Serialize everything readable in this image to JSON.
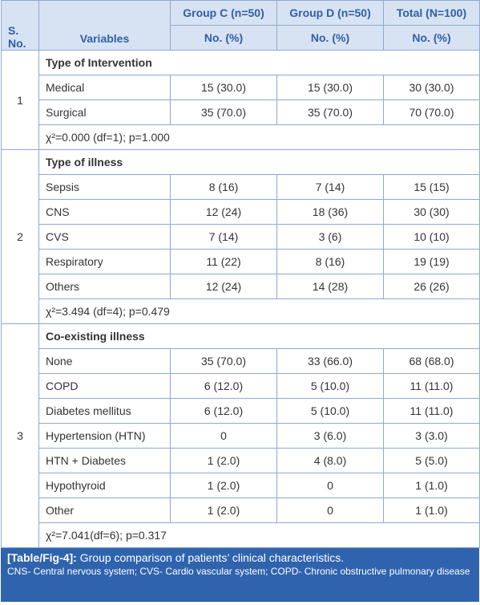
{
  "header": {
    "s_no": [
      "S.",
      "No."
    ],
    "variables": "Variables",
    "groups": [
      {
        "name": "Group C (n=50)",
        "unit": "No. (%)"
      },
      {
        "name": "Group D (n=50)",
        "unit": "No. (%)"
      },
      {
        "name": "Total (N=100)",
        "unit": "No. (%)"
      }
    ]
  },
  "sections": [
    {
      "number": "1",
      "title": "Type of Intervention",
      "rows": [
        [
          "Medical",
          "15 (30.0)",
          "15 (30.0)",
          "30 (30.0)"
        ],
        [
          "Surgical",
          "35 (70.0)",
          "35 (70.0)",
          "70 (70.0)"
        ]
      ],
      "statistic": "χ²=0.000 (df=1); p=1.000"
    },
    {
      "number": "2",
      "title": "Type of illness",
      "rows": [
        [
          "Sepsis",
          "8 (16)",
          "7 (14)",
          "15 (15)"
        ],
        [
          "CNS",
          "12 (24)",
          "18 (36)",
          "30 (30)"
        ],
        [
          "CVS",
          "7 (14)",
          "3 (6)",
          "10 (10)"
        ],
        [
          "Respiratory",
          "11 (22)",
          "8 (16)",
          "19 (19)"
        ],
        [
          "Others",
          "12 (24)",
          "14 (28)",
          "26 (26)"
        ]
      ],
      "statistic": "χ²=3.494 (df=4); p=0.479"
    },
    {
      "number": "3",
      "title": "Co-existing illness",
      "rows": [
        [
          "None",
          "35 (70.0)",
          "33 (66.0)",
          "68 (68.0)"
        ],
        [
          "COPD",
          "6 (12.0)",
          "5 (10.0)",
          "11 (11.0)"
        ],
        [
          "Diabetes mellitus",
          "6 (12.0)",
          "5 (10.0)",
          "11 (11.0)"
        ],
        [
          "Hypertension (HTN)",
          "0",
          "3 (6.0)",
          "3 (3.0)"
        ],
        [
          "HTN + Diabetes",
          "1 (2.0)",
          "4 (8.0)",
          "5 (5.0)"
        ],
        [
          "Hypothyroid",
          "1 (2.0)",
          "0",
          "1 (1.0)"
        ],
        [
          "Other",
          "1 (2.0)",
          "0",
          "1 (1.0)"
        ]
      ],
      "statistic": "χ²=7.041(df=6); p=0.317"
    }
  ],
  "caption": {
    "label": "[Table/Fig-4]:",
    "title": "Group comparison of patients’ clinical characteristics.",
    "note": "CNS- Central nervous system; CVS- Cardio vascular system; COPD- Chronic obstructive pulmonary disease"
  }
}
